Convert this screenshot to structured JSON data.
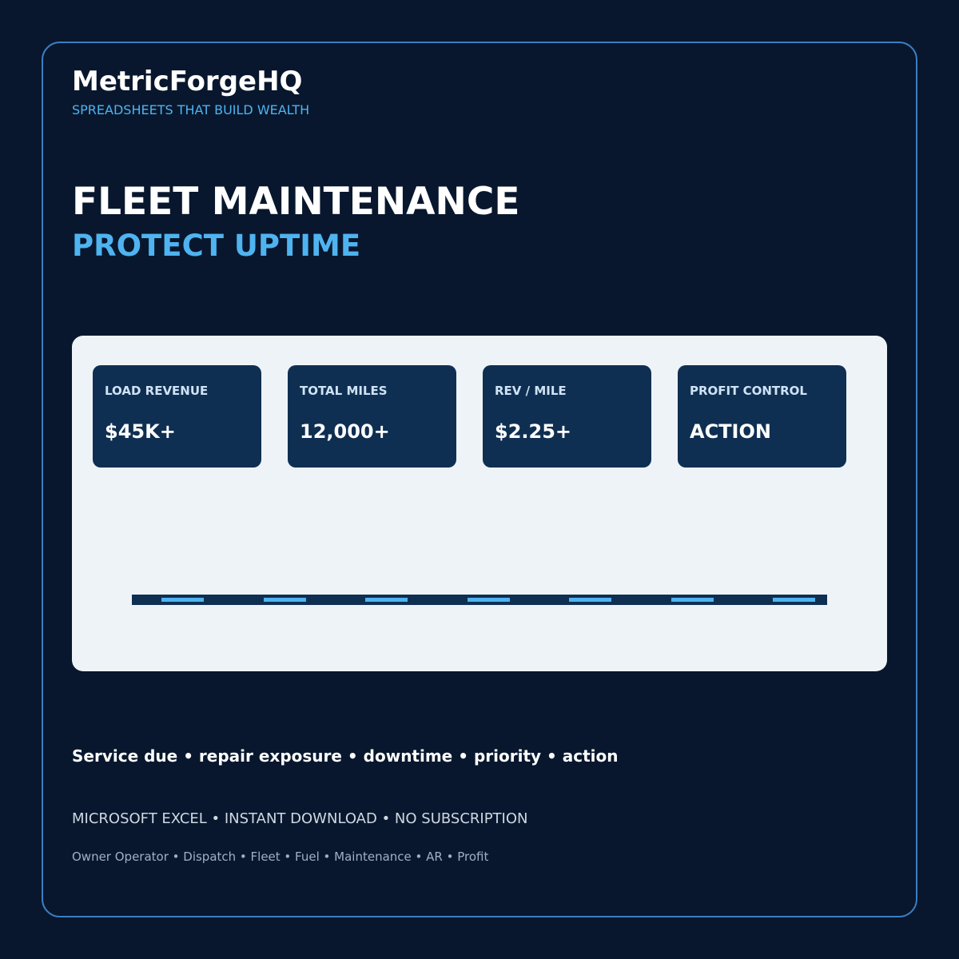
{
  "brand": {
    "name": "MetricForgeHQ",
    "tagline": "SPREADSHEETS THAT BUILD WEALTH"
  },
  "hero": {
    "title": "FLEET MAINTENANCE",
    "subtitle": "PROTECT UPTIME"
  },
  "cards": [
    {
      "label": "LOAD REVENUE",
      "value": "$45K+"
    },
    {
      "label": "TOTAL MILES",
      "value": "12,000+"
    },
    {
      "label": "REV / MILE",
      "value": "$2.25+"
    },
    {
      "label": "PROFIT CONTROL",
      "value": "ACTION"
    }
  ],
  "features": "Service due • repair exposure • downtime • priority • action",
  "footer": {
    "formats": "MICROSOFT EXCEL • INSTANT DOWNLOAD • NO SUBSCRIPTION",
    "tags": "Owner Operator • Dispatch • Fleet • Fuel • Maintenance • AR • Profit"
  }
}
